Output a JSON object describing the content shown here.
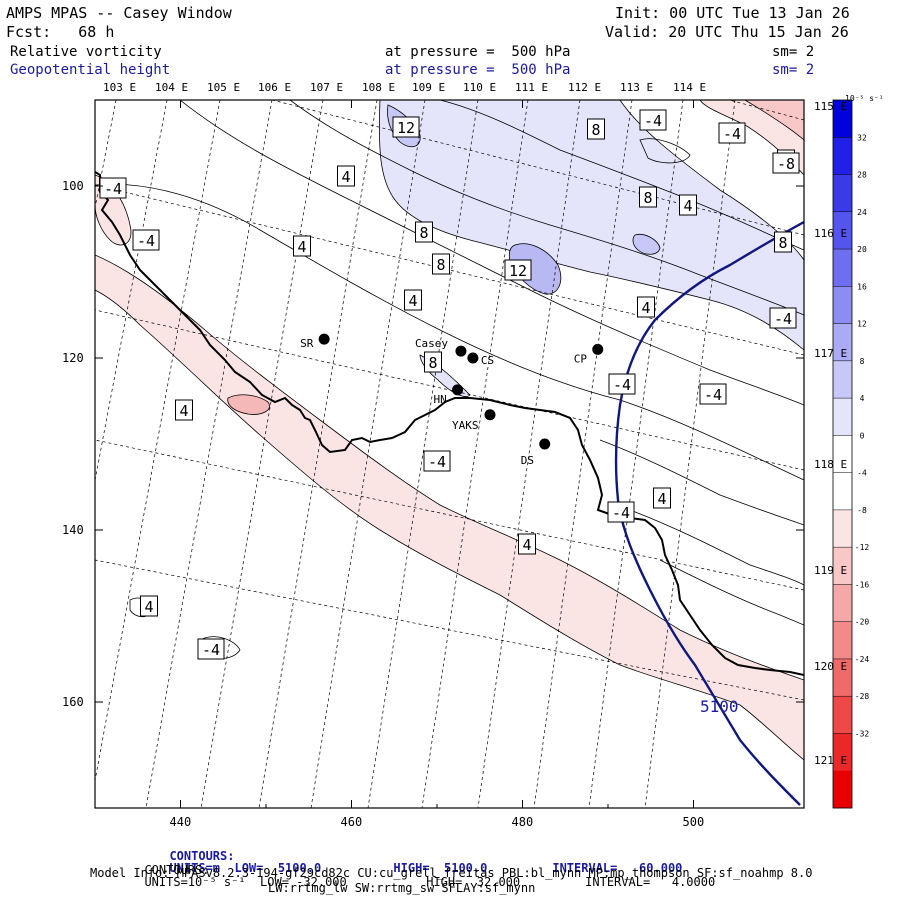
{
  "header": {
    "title": "AMPS MPAS -- Casey Window",
    "init": "Init: 00 UTC Tue 13 Jan 26",
    "fcst": "Fcst:   68 h",
    "valid": "Valid: 20 UTC Thu 15 Jan 26",
    "field1": {
      "name": "Relative vorticity",
      "pressure": "at pressure =  500 hPa",
      "sm": "sm= 2"
    },
    "field2": {
      "name": "Geopotential height",
      "pressure": "at pressure =  500 hPa",
      "sm": "sm= 2"
    }
  },
  "map": {
    "lon_top": [
      "103 E",
      "104 E",
      "105 E",
      "106 E",
      "107 E",
      "108 E",
      "109 E",
      "110 E",
      "111 E",
      "112 E",
      "113 E",
      "114 E"
    ],
    "lon_right": [
      "115 E",
      "116 E",
      "117 E",
      "118 E",
      "119 E",
      "120 E",
      "121 E"
    ],
    "x_ticks": [
      "440",
      "460",
      "480",
      "500"
    ],
    "y_ticks": [
      "100",
      "120",
      "140",
      "160"
    ],
    "contour_labels": [
      "12",
      "8",
      "-4",
      "-4",
      "4",
      "4",
      "-8",
      "8",
      "4",
      "-4",
      "8",
      "-4",
      "4",
      "8",
      "12",
      "4",
      "8",
      "4",
      "-4",
      "8",
      "-4",
      "4",
      "-4",
      "-4",
      "4",
      "-4",
      "4",
      "4",
      "-4"
    ],
    "height_label": "5100",
    "stations": [
      {
        "name": "SR",
        "lon": 456.8,
        "lat": 117.8
      },
      {
        "name": "Casey",
        "lon": 472.8,
        "lat": 119.2
      },
      {
        "name": "CS",
        "lon": 474.2,
        "lat": 120.0
      },
      {
        "name": "CP",
        "lon": 488.8,
        "lat": 119.0
      },
      {
        "name": "HN",
        "lon": 472.4,
        "lat": 123.7
      },
      {
        "name": "YAKS",
        "lon": 476.2,
        "lat": 126.6
      },
      {
        "name": "DS",
        "lon": 482.6,
        "lat": 130.0
      }
    ]
  },
  "colorbar": {
    "unit_label": "10⁻⁵ s⁻¹",
    "ticks": [
      "32",
      "28",
      "24",
      "20",
      "16",
      "12",
      "8",
      "4",
      "0",
      "-4",
      "-8",
      "-12",
      "-16",
      "-20",
      "-24",
      "-28",
      "-32"
    ],
    "colors": [
      "#0000dd",
      "#2020e8",
      "#3a3ae8",
      "#5454ee",
      "#6e6ef0",
      "#8c8cf2",
      "#aaaaf5",
      "#c8c8f8",
      "#e4e4fb",
      "#ffffff",
      "#ffffff",
      "#fbe4e4",
      "#f8c8c8",
      "#f5a8a8",
      "#f28a8a",
      "#f06a6a",
      "#ee4848",
      "#ea2828",
      "#e80000"
    ]
  },
  "footer": {
    "c1_head": "CONTOURS:",
    "c1": "UNITS=m  LOW=  5100.0          HIGH=  5100.0         INTERVAL=   60.000",
    "c2_head": "CONTOURS:",
    "c2": "UNITS=10⁻⁵ s⁻¹  LOW= -32.000           HIGH=  32.000         INTERVAL=   4.0000",
    "model1": "Model Info: MPASv8.2.3-194-gf29cd82c CU:cu_grell_freitas PBL:bl_mynn MP:mp_thompson SF:sf_noahmp 8.0",
    "model2": "LW:rrtmg_lw SW:rrtmg_sw SFLAY:sf_mynn"
  }
}
